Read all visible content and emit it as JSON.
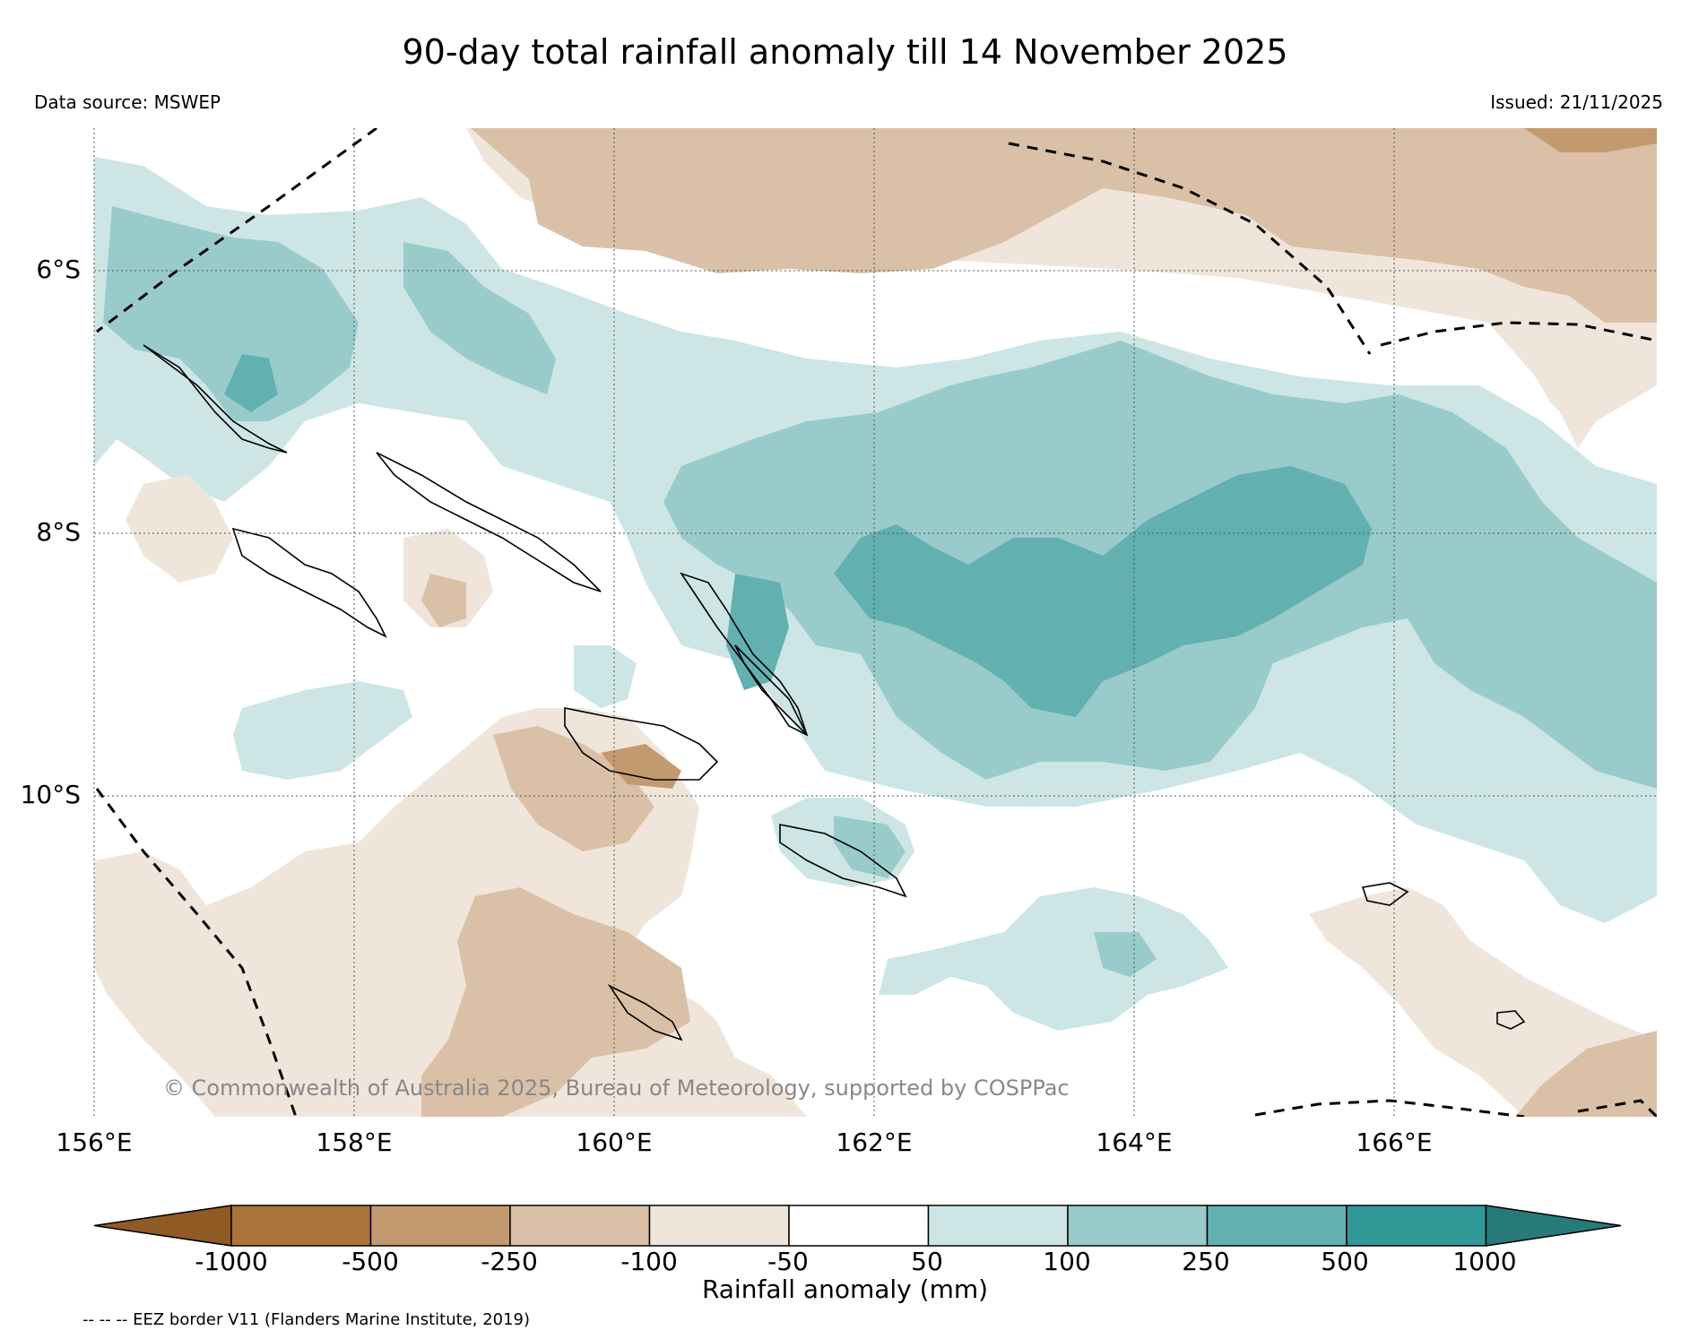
{
  "title": "90-day total rainfall anomaly till 14 November 2025",
  "data_source": "Data source: MSWEP",
  "issued": "Issued: 21/11/2025",
  "copyright": "© Commonwealth of Australia 2025, Bureau of Meteorology, supported by COSPPac",
  "eez_note": "-- -- -- EEZ border V11 (Flanders Marine Institute, 2019)",
  "lon_labels": [
    "156°E",
    "158°E",
    "160°E",
    "162°E",
    "164°E",
    "166°E"
  ],
  "lat_labels": [
    "6°S",
    "8°S",
    "10°S"
  ],
  "colorbar": {
    "title": "Rainfall anomaly (mm)",
    "tick_labels": [
      "-1000",
      "-500",
      "-250",
      "-100",
      "-50",
      "50",
      "100",
      "250",
      "500",
      "1000"
    ],
    "colors": [
      "#8f5a24",
      "#ab743d",
      "#c39a6f",
      "#d9c0a7",
      "#f0e5db",
      "#ffffff",
      "#cde6e5",
      "#99cbcb",
      "#62b0b0",
      "#309896",
      "#277a78"
    ]
  },
  "colors": {
    "dry_light": "#f0e5db",
    "dry_mid": "#d9c0a7",
    "dry_strong": "#c39a6f",
    "dry_very": "#ab743d",
    "wet_light": "#cde6e5",
    "wet_mid": "#99cbcb",
    "wet_strong": "#62b0b0",
    "wet_very": "#309896"
  }
}
